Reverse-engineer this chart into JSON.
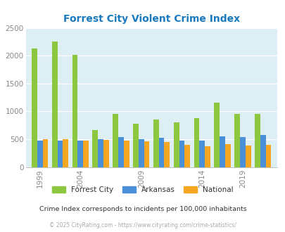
{
  "title": "Forrest City Violent Crime Index",
  "title_color": "#1a7abf",
  "subtitle": "Crime Index corresponds to incidents per 100,000 inhabitants",
  "footer": "© 2025 CityRating.com - https://www.cityrating.com/crime-statistics/",
  "groups": [
    {
      "label": "1999",
      "fc": 2130,
      "ar": 470,
      "na": 500
    },
    {
      "label": "",
      "fc": 2260,
      "ar": 470,
      "na": 500
    },
    {
      "label": "2004",
      "fc": 2010,
      "ar": 470,
      "na": 470
    },
    {
      "label": "",
      "fc": 660,
      "ar": 505,
      "na": 490
    },
    {
      "label": "",
      "fc": 950,
      "ar": 540,
      "na": 480
    },
    {
      "label": "2009",
      "fc": 780,
      "ar": 505,
      "na": 465
    },
    {
      "label": "",
      "fc": 850,
      "ar": 520,
      "na": 450
    },
    {
      "label": "",
      "fc": 800,
      "ar": 470,
      "na": 400
    },
    {
      "label": "2014",
      "fc": 880,
      "ar": 470,
      "na": 370
    },
    {
      "label": "",
      "fc": 1160,
      "ar": 550,
      "na": 410
    },
    {
      "label": "2019",
      "fc": 950,
      "ar": 540,
      "na": 390
    },
    {
      "label": "",
      "fc": 950,
      "ar": 580,
      "na": 400
    }
  ],
  "colors": {
    "forrest_city": "#8dc63f",
    "arkansas": "#4a90d9",
    "national": "#f5a623"
  },
  "ylim": [
    0,
    2500
  ],
  "yticks": [
    0,
    500,
    1000,
    1500,
    2000,
    2500
  ],
  "plot_bg": "#deeef5",
  "grid_color": "#ffffff",
  "legend_labels": [
    "Forrest City",
    "Arkansas",
    "National"
  ],
  "bar_width": 0.27
}
